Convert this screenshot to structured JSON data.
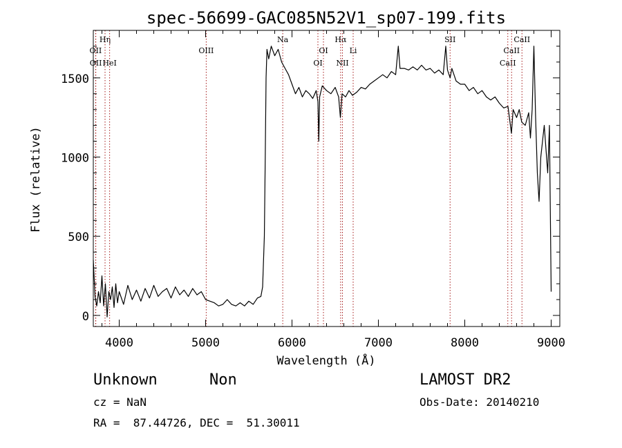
{
  "chart_data": {
    "type": "line",
    "title": "spec-56699-GAC085N52V1_sp07-199.fits",
    "xlabel": "Wavelength (Å)",
    "ylabel": "Flux (relative)",
    "xlim": [
      3700,
      9100
    ],
    "ylim": [
      -70,
      1800
    ],
    "xticks": [
      4000,
      5000,
      6000,
      7000,
      8000,
      9000
    ],
    "yticks": [
      0,
      500,
      1000,
      1500
    ],
    "series": [
      {
        "color": "#000000",
        "points": [
          [
            3700,
            350
          ],
          [
            3720,
            120
          ],
          [
            3740,
            60
          ],
          [
            3760,
            150
          ],
          [
            3780,
            80
          ],
          [
            3800,
            250
          ],
          [
            3820,
            60
          ],
          [
            3840,
            200
          ],
          [
            3860,
            -10
          ],
          [
            3880,
            150
          ],
          [
            3900,
            100
          ],
          [
            3920,
            180
          ],
          [
            3940,
            50
          ],
          [
            3960,
            200
          ],
          [
            3980,
            80
          ],
          [
            4000,
            150
          ],
          [
            4050,
            70
          ],
          [
            4100,
            190
          ],
          [
            4150,
            100
          ],
          [
            4200,
            160
          ],
          [
            4250,
            90
          ],
          [
            4300,
            170
          ],
          [
            4350,
            110
          ],
          [
            4400,
            190
          ],
          [
            4450,
            120
          ],
          [
            4500,
            150
          ],
          [
            4550,
            170
          ],
          [
            4600,
            110
          ],
          [
            4650,
            180
          ],
          [
            4700,
            130
          ],
          [
            4750,
            160
          ],
          [
            4800,
            120
          ],
          [
            4850,
            170
          ],
          [
            4900,
            130
          ],
          [
            4950,
            150
          ],
          [
            5000,
            100
          ],
          [
            5050,
            90
          ],
          [
            5100,
            80
          ],
          [
            5150,
            60
          ],
          [
            5200,
            70
          ],
          [
            5250,
            100
          ],
          [
            5300,
            70
          ],
          [
            5350,
            60
          ],
          [
            5400,
            80
          ],
          [
            5450,
            60
          ],
          [
            5500,
            90
          ],
          [
            5550,
            70
          ],
          [
            5600,
            110
          ],
          [
            5640,
            120
          ],
          [
            5660,
            180
          ],
          [
            5680,
            500
          ],
          [
            5690,
            1000
          ],
          [
            5700,
            1500
          ],
          [
            5710,
            1680
          ],
          [
            5730,
            1620
          ],
          [
            5760,
            1700
          ],
          [
            5800,
            1640
          ],
          [
            5840,
            1680
          ],
          [
            5880,
            1600
          ],
          [
            5920,
            1560
          ],
          [
            5960,
            1520
          ],
          [
            6000,
            1460
          ],
          [
            6040,
            1400
          ],
          [
            6080,
            1440
          ],
          [
            6120,
            1380
          ],
          [
            6160,
            1420
          ],
          [
            6200,
            1400
          ],
          [
            6240,
            1370
          ],
          [
            6280,
            1420
          ],
          [
            6300,
            1350
          ],
          [
            6310,
            1100
          ],
          [
            6320,
            1380
          ],
          [
            6350,
            1450
          ],
          [
            6400,
            1420
          ],
          [
            6450,
            1400
          ],
          [
            6500,
            1440
          ],
          [
            6540,
            1380
          ],
          [
            6560,
            1250
          ],
          [
            6580,
            1400
          ],
          [
            6620,
            1380
          ],
          [
            6660,
            1420
          ],
          [
            6700,
            1390
          ],
          [
            6750,
            1410
          ],
          [
            6800,
            1440
          ],
          [
            6850,
            1430
          ],
          [
            6900,
            1460
          ],
          [
            6950,
            1480
          ],
          [
            7000,
            1500
          ],
          [
            7050,
            1520
          ],
          [
            7100,
            1500
          ],
          [
            7150,
            1540
          ],
          [
            7200,
            1520
          ],
          [
            7230,
            1700
          ],
          [
            7250,
            1560
          ],
          [
            7300,
            1560
          ],
          [
            7350,
            1550
          ],
          [
            7400,
            1570
          ],
          [
            7450,
            1550
          ],
          [
            7500,
            1580
          ],
          [
            7550,
            1550
          ],
          [
            7600,
            1560
          ],
          [
            7650,
            1530
          ],
          [
            7700,
            1550
          ],
          [
            7750,
            1520
          ],
          [
            7780,
            1700
          ],
          [
            7800,
            1550
          ],
          [
            7830,
            1500
          ],
          [
            7850,
            1560
          ],
          [
            7900,
            1480
          ],
          [
            7950,
            1460
          ],
          [
            8000,
            1460
          ],
          [
            8050,
            1420
          ],
          [
            8100,
            1440
          ],
          [
            8150,
            1400
          ],
          [
            8200,
            1420
          ],
          [
            8250,
            1380
          ],
          [
            8300,
            1360
          ],
          [
            8350,
            1380
          ],
          [
            8400,
            1340
          ],
          [
            8450,
            1310
          ],
          [
            8500,
            1320
          ],
          [
            8540,
            1150
          ],
          [
            8560,
            1300
          ],
          [
            8600,
            1250
          ],
          [
            8630,
            1300
          ],
          [
            8660,
            1220
          ],
          [
            8700,
            1200
          ],
          [
            8740,
            1280
          ],
          [
            8760,
            1120
          ],
          [
            8780,
            1300
          ],
          [
            8800,
            1700
          ],
          [
            8820,
            1250
          ],
          [
            8840,
            900
          ],
          [
            8860,
            720
          ],
          [
            8880,
            1000
          ],
          [
            8900,
            1100
          ],
          [
            8920,
            1200
          ],
          [
            8940,
            1050
          ],
          [
            8960,
            900
          ],
          [
            8980,
            1200
          ],
          [
            9000,
            150
          ]
        ]
      }
    ],
    "lines": [
      {
        "label": "OII",
        "x": 3727,
        "row": 2
      },
      {
        "label": "OII",
        "x": 3729,
        "row": 3
      },
      {
        "label": "Hη",
        "x": 3836,
        "row": 1
      },
      {
        "label": "HeI",
        "x": 3889,
        "row": 3
      },
      {
        "label": "OIII",
        "x": 5007,
        "row": 2
      },
      {
        "label": "Na",
        "x": 5893,
        "row": 1
      },
      {
        "label": "OI",
        "x": 6300,
        "row": 3
      },
      {
        "label": "OI",
        "x": 6364,
        "row": 2
      },
      {
        "label": "Hα",
        "x": 6563,
        "row": 1
      },
      {
        "label": "NII",
        "x": 6584,
        "row": 3
      },
      {
        "label": "Li",
        "x": 6708,
        "row": 2
      },
      {
        "label": "SII",
        "x": 7830,
        "row": 1
      },
      {
        "label": "CaII",
        "x": 8498,
        "row": 3
      },
      {
        "label": "CaII",
        "x": 8542,
        "row": 2
      },
      {
        "label": "CaII",
        "x": 8662,
        "row": 1
      }
    ]
  },
  "info": {
    "class": "Unknown",
    "subclass": "Non",
    "cz": "cz = NaN",
    "coords": "RA =  87.44726, DEC =  51.30011",
    "survey": "LAMOST DR2",
    "obs_date": "Obs-Date: 20140210"
  }
}
